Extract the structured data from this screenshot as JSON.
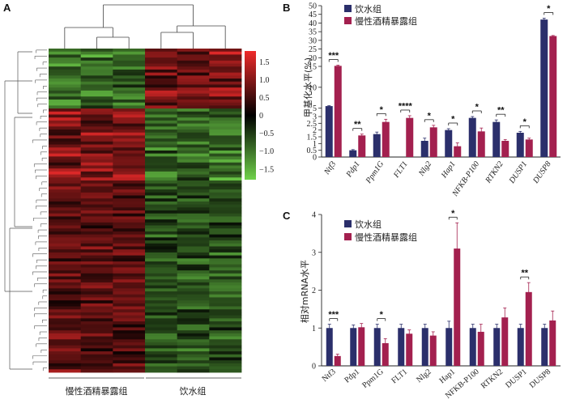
{
  "panels": {
    "a": "A",
    "b": "B",
    "c": "C"
  },
  "colors": {
    "water": "#2b2f6b",
    "alcohol": "#a3204f",
    "hm_high": "#ee2b2b",
    "hm_mid": "#000000",
    "hm_low": "#6fd24a"
  },
  "chart_data": [
    {
      "id": "A",
      "type": "heatmap",
      "column_groups": [
        "慢性酒精暴露组",
        "饮水组"
      ],
      "columns_per_group": 3,
      "colorbar": {
        "range": [
          -1.8,
          1.8
        ],
        "ticks": [
          "1.5",
          "1.0",
          "0.5",
          "0",
          "−0.5",
          "−1.0",
          "−1.5"
        ]
      },
      "rows": 108,
      "seed": 7
    },
    {
      "id": "B",
      "type": "bar",
      "ylabel": "甲基化水平(%)",
      "legend": [
        "饮水组",
        "慢性酒精暴露组"
      ],
      "categories": [
        "Ntf3",
        "Pdp1",
        "Ppm1G",
        "FLT1",
        "Nlg2",
        "Hap1",
        "NFKB-P100",
        "RTKN2",
        "DUSP1",
        "DUSP8"
      ],
      "series": [
        {
          "name": "饮水组",
          "values": [
            5.5,
            0.5,
            1.7,
            0.0,
            1.2,
            2.0,
            2.9,
            2.6,
            1.8,
            42.0
          ],
          "errors": [
            0.1,
            0.05,
            0.15,
            0.0,
            0.2,
            0.1,
            0.1,
            0.15,
            0.1,
            0.8
          ]
        },
        {
          "name": "慢性酒精暴露组",
          "values": [
            15.3,
            1.6,
            2.6,
            2.9,
            2.2,
            0.8,
            1.9,
            1.2,
            1.3,
            32.5
          ],
          "errors": [
            0.4,
            0.1,
            0.2,
            0.3,
            0.15,
            0.25,
            0.25,
            0.1,
            0.1,
            0.3
          ]
        }
      ],
      "significance": [
        "***",
        "**",
        "*",
        "****",
        "*",
        "*",
        "*",
        "**",
        "*",
        "*"
      ],
      "ytick_labels": [
        "0",
        "0.5",
        "1",
        "1.5",
        "2",
        "2.5",
        "3",
        "5",
        "10",
        "15",
        "20",
        "25",
        "30",
        "35",
        "40",
        "45",
        "50"
      ],
      "ylim": [
        0,
        50
      ]
    },
    {
      "id": "C",
      "type": "bar",
      "ylabel": "相对mRNA水平",
      "legend": [
        "饮水组",
        "慢性酒精暴露组"
      ],
      "categories": [
        "Ntf3",
        "Pdp1",
        "Ppm1G",
        "FLT1",
        "Nlg2",
        "Hap1",
        "NFKB-P100",
        "RTKN2",
        "DUSP1",
        "DUSP8"
      ],
      "series": [
        {
          "name": "饮水组",
          "values": [
            1.0,
            1.0,
            1.0,
            1.0,
            1.0,
            1.0,
            1.0,
            1.0,
            1.0,
            1.0
          ],
          "errors": [
            0.1,
            0.08,
            0.1,
            0.1,
            0.1,
            0.18,
            0.1,
            0.1,
            0.1,
            0.1
          ]
        },
        {
          "name": "慢性酒精暴露组",
          "values": [
            0.26,
            1.02,
            0.6,
            0.85,
            0.8,
            3.1,
            0.9,
            1.28,
            1.95,
            1.2
          ],
          "errors": [
            0.05,
            0.1,
            0.12,
            0.1,
            0.1,
            0.68,
            0.2,
            0.25,
            0.25,
            0.25
          ]
        }
      ],
      "significance": [
        "***",
        "",
        "*",
        "",
        "",
        "*",
        "",
        "",
        "**",
        ""
      ],
      "yticks": [
        0,
        1,
        2,
        3,
        4
      ],
      "ylim": [
        0,
        4
      ]
    }
  ]
}
